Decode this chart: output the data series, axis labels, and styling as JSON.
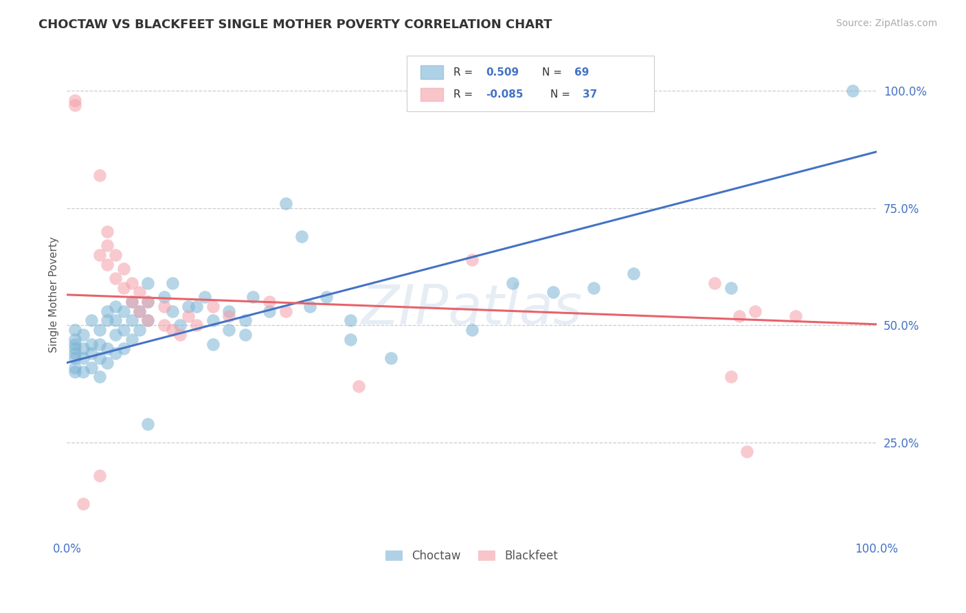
{
  "title": "CHOCTAW VS BLACKFEET SINGLE MOTHER POVERTY CORRELATION CHART",
  "source": "Source: ZipAtlas.com",
  "ylabel": "Single Mother Poverty",
  "xlim": [
    0,
    1
  ],
  "ylim": [
    0.05,
    1.08
  ],
  "choctaw_color": "#7ab3d4",
  "blackfeet_color": "#f4a0a8",
  "choctaw_R": "0.509",
  "choctaw_N": "69",
  "blackfeet_R": "-0.085",
  "blackfeet_N": "37",
  "watermark": "ZIPatlas",
  "choctaw_line": [
    0.42,
    0.87
  ],
  "blackfeet_line": [
    0.565,
    0.502
  ],
  "choctaw_points": [
    [
      0.01,
      0.4
    ],
    [
      0.01,
      0.41
    ],
    [
      0.01,
      0.43
    ],
    [
      0.01,
      0.44
    ],
    [
      0.01,
      0.45
    ],
    [
      0.01,
      0.46
    ],
    [
      0.01,
      0.47
    ],
    [
      0.01,
      0.49
    ],
    [
      0.02,
      0.4
    ],
    [
      0.02,
      0.43
    ],
    [
      0.02,
      0.45
    ],
    [
      0.02,
      0.48
    ],
    [
      0.03,
      0.41
    ],
    [
      0.03,
      0.44
    ],
    [
      0.03,
      0.46
    ],
    [
      0.03,
      0.51
    ],
    [
      0.04,
      0.39
    ],
    [
      0.04,
      0.43
    ],
    [
      0.04,
      0.46
    ],
    [
      0.04,
      0.49
    ],
    [
      0.05,
      0.42
    ],
    [
      0.05,
      0.45
    ],
    [
      0.05,
      0.51
    ],
    [
      0.05,
      0.53
    ],
    [
      0.06,
      0.44
    ],
    [
      0.06,
      0.48
    ],
    [
      0.06,
      0.51
    ],
    [
      0.06,
      0.54
    ],
    [
      0.07,
      0.45
    ],
    [
      0.07,
      0.49
    ],
    [
      0.07,
      0.53
    ],
    [
      0.08,
      0.47
    ],
    [
      0.08,
      0.51
    ],
    [
      0.08,
      0.55
    ],
    [
      0.09,
      0.49
    ],
    [
      0.09,
      0.53
    ],
    [
      0.1,
      0.51
    ],
    [
      0.1,
      0.55
    ],
    [
      0.1,
      0.59
    ],
    [
      0.12,
      0.56
    ],
    [
      0.13,
      0.53
    ],
    [
      0.13,
      0.59
    ],
    [
      0.14,
      0.5
    ],
    [
      0.15,
      0.54
    ],
    [
      0.16,
      0.54
    ],
    [
      0.17,
      0.56
    ],
    [
      0.18,
      0.46
    ],
    [
      0.18,
      0.51
    ],
    [
      0.2,
      0.49
    ],
    [
      0.2,
      0.53
    ],
    [
      0.22,
      0.48
    ],
    [
      0.22,
      0.51
    ],
    [
      0.23,
      0.56
    ],
    [
      0.25,
      0.53
    ],
    [
      0.27,
      0.76
    ],
    [
      0.29,
      0.69
    ],
    [
      0.3,
      0.54
    ],
    [
      0.32,
      0.56
    ],
    [
      0.35,
      0.47
    ],
    [
      0.35,
      0.51
    ],
    [
      0.4,
      0.43
    ],
    [
      0.5,
      0.49
    ],
    [
      0.55,
      0.59
    ],
    [
      0.6,
      0.57
    ],
    [
      0.65,
      0.58
    ],
    [
      0.7,
      0.61
    ],
    [
      0.82,
      0.58
    ],
    [
      0.97,
      1.0
    ],
    [
      0.1,
      0.29
    ]
  ],
  "blackfeet_points": [
    [
      0.01,
      0.97
    ],
    [
      0.01,
      0.98
    ],
    [
      0.04,
      0.82
    ],
    [
      0.04,
      0.65
    ],
    [
      0.05,
      0.7
    ],
    [
      0.05,
      0.63
    ],
    [
      0.05,
      0.67
    ],
    [
      0.06,
      0.6
    ],
    [
      0.06,
      0.65
    ],
    [
      0.07,
      0.58
    ],
    [
      0.07,
      0.62
    ],
    [
      0.08,
      0.55
    ],
    [
      0.08,
      0.59
    ],
    [
      0.09,
      0.53
    ],
    [
      0.09,
      0.57
    ],
    [
      0.1,
      0.51
    ],
    [
      0.1,
      0.55
    ],
    [
      0.12,
      0.5
    ],
    [
      0.12,
      0.54
    ],
    [
      0.13,
      0.49
    ],
    [
      0.14,
      0.48
    ],
    [
      0.15,
      0.52
    ],
    [
      0.16,
      0.5
    ],
    [
      0.18,
      0.54
    ],
    [
      0.2,
      0.52
    ],
    [
      0.25,
      0.55
    ],
    [
      0.27,
      0.53
    ],
    [
      0.5,
      0.64
    ],
    [
      0.8,
      0.59
    ],
    [
      0.83,
      0.52
    ],
    [
      0.85,
      0.53
    ],
    [
      0.9,
      0.52
    ],
    [
      0.82,
      0.39
    ],
    [
      0.84,
      0.23
    ],
    [
      0.36,
      0.37
    ],
    [
      0.04,
      0.18
    ],
    [
      0.02,
      0.12
    ]
  ]
}
